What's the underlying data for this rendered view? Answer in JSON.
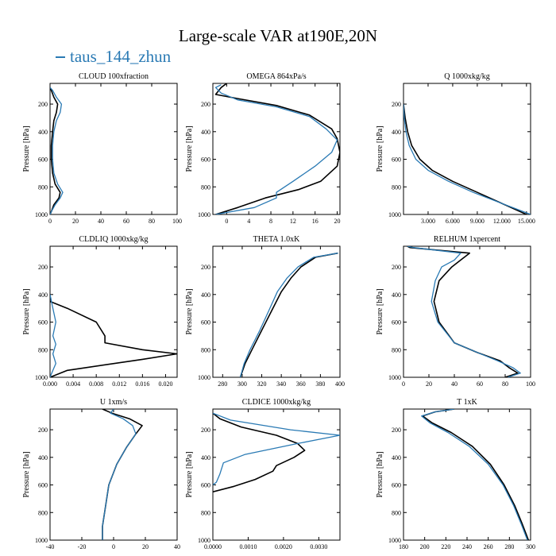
{
  "figure": {
    "title": "Large-scale VAR at190E,20N",
    "legend_label": "taus_144_zhun",
    "colors": {
      "model": "#000000",
      "obs": "#2a7ab4"
    }
  },
  "chart_data": [
    {
      "type": "line",
      "title": "CLOUD  100xfraction",
      "ylabel": "Pressure [hPa]",
      "xlim": [
        0,
        100
      ],
      "xticks": [
        0,
        20,
        40,
        60,
        80,
        100
      ],
      "ylim": [
        1000,
        50
      ],
      "yticks": [
        200,
        400,
        600,
        800,
        1000
      ],
      "series": [
        {
          "role": "model",
          "x": [
            0,
            1,
            3,
            6,
            5,
            3,
            2,
            1,
            1,
            2,
            4,
            8,
            7,
            3,
            1,
            0
          ],
          "y": [
            80,
            100,
            150,
            200,
            260,
            320,
            400,
            500,
            600,
            700,
            780,
            840,
            880,
            930,
            980,
            1000
          ]
        },
        {
          "role": "obs",
          "x": [
            0,
            2,
            5,
            9,
            8,
            5,
            3,
            2,
            2,
            3,
            6,
            10,
            8,
            4,
            1,
            0
          ],
          "y": [
            80,
            100,
            150,
            200,
            260,
            320,
            400,
            500,
            600,
            700,
            780,
            840,
            880,
            930,
            980,
            1000
          ]
        }
      ]
    },
    {
      "type": "line",
      "title": "OMEGA  864xPa/s",
      "ylabel": "Pressure [hPa]",
      "xlim": [
        -2.5,
        20.5
      ],
      "xticks": [
        0,
        4,
        8,
        12,
        16,
        20
      ],
      "ylim": [
        1000,
        50
      ],
      "yticks": [
        200,
        400,
        600,
        800,
        1000
      ],
      "series": [
        {
          "role": "model",
          "x": [
            0,
            -1,
            -2,
            2,
            9,
            15,
            19,
            20,
            20.5,
            20,
            17,
            13,
            7,
            2,
            -2
          ],
          "y": [
            50,
            80,
            130,
            160,
            210,
            280,
            380,
            450,
            550,
            650,
            760,
            820,
            880,
            950,
            1000
          ]
        },
        {
          "role": "obs",
          "x": [
            -1,
            -2,
            -1,
            2,
            9,
            15,
            18,
            20,
            19,
            16,
            12,
            9,
            9,
            5,
            -2
          ],
          "y": [
            60,
            80,
            120,
            170,
            220,
            290,
            380,
            460,
            550,
            650,
            760,
            840,
            880,
            950,
            1000
          ]
        }
      ]
    },
    {
      "type": "line",
      "title": "Q  1000xkg/kg",
      "ylabel": "Pressure [hPa]",
      "xlim": [
        0,
        15.5
      ],
      "xticks": [
        3,
        6,
        9,
        12,
        15
      ],
      "xtick_labels": [
        "3.000",
        "6.000",
        "9.000",
        "12.000",
        "15.000"
      ],
      "ylim": [
        1000,
        50
      ],
      "yticks": [
        200,
        400,
        600,
        800,
        1000
      ],
      "series": [
        {
          "role": "model",
          "x": [
            0,
            0.2,
            0.5,
            1,
            2,
            3.5,
            6,
            9,
            12,
            15
          ],
          "y": [
            200,
            300,
            400,
            500,
            600,
            680,
            760,
            840,
            920,
            1000
          ]
        },
        {
          "role": "obs",
          "x": [
            0,
            0.1,
            0.3,
            0.7,
            1.5,
            3,
            5.5,
            8.5,
            12,
            15.5
          ],
          "y": [
            200,
            300,
            400,
            500,
            600,
            680,
            760,
            840,
            920,
            1000
          ]
        }
      ]
    },
    {
      "type": "line",
      "title": "CLDLIQ  1000xkg/kg",
      "ylabel": "Pressure [hPa]",
      "xlim": [
        0,
        0.022
      ],
      "xticks": [
        0,
        0.004,
        0.008,
        0.012,
        0.016,
        0.02
      ],
      "xtick_labels": [
        "0.000",
        "0.004",
        "0.008",
        "0.012",
        "0.016",
        "0.020"
      ],
      "ylim": [
        1000,
        50
      ],
      "yticks": [
        200,
        400,
        600,
        800,
        1000
      ],
      "series": [
        {
          "role": "model",
          "x": [
            0,
            0,
            0.003,
            0.008,
            0.0095,
            0.0095,
            0.016,
            0.022,
            0.016,
            0.003,
            0
          ],
          "y": [
            400,
            450,
            500,
            600,
            700,
            750,
            800,
            830,
            870,
            950,
            1000
          ]
        },
        {
          "role": "obs",
          "x": [
            0,
            0.0005,
            0.001,
            0.0005,
            0.001,
            0.0005,
            0.001,
            0.0005,
            0
          ],
          "y": [
            400,
            500,
            600,
            700,
            760,
            830,
            900,
            950,
            1000
          ]
        }
      ]
    },
    {
      "type": "line",
      "title": "THETA  1.0xK",
      "ylabel": "Pressure [hPa]",
      "xlim": [
        270,
        400
      ],
      "xticks": [
        280,
        300,
        320,
        340,
        360,
        380,
        400
      ],
      "ylim": [
        1000,
        50
      ],
      "yticks": [
        200,
        400,
        600,
        800,
        1000
      ],
      "series": [
        {
          "role": "model",
          "x": [
            398,
            375,
            360,
            350,
            340,
            330,
            320,
            310,
            303,
            298
          ],
          "y": [
            100,
            130,
            200,
            280,
            380,
            520,
            660,
            800,
            900,
            1000
          ]
        },
        {
          "role": "obs",
          "x": [
            398,
            373,
            357,
            346,
            336,
            327,
            318,
            308,
            302,
            298
          ],
          "y": [
            100,
            130,
            200,
            280,
            380,
            520,
            660,
            800,
            900,
            1000
          ]
        }
      ]
    },
    {
      "type": "line",
      "title": "RELHUM  1xpercent",
      "ylabel": "Pressure [hPa]",
      "xlim": [
        0,
        100
      ],
      "xticks": [
        0,
        20,
        40,
        60,
        80,
        100
      ],
      "ylim": [
        1000,
        50
      ],
      "yticks": [
        200,
        400,
        600,
        800,
        1000
      ],
      "series": [
        {
          "role": "model",
          "x": [
            3,
            5,
            52,
            45,
            38,
            28,
            24,
            28,
            40,
            58,
            76,
            83,
            90,
            80
          ],
          "y": [
            50,
            60,
            100,
            150,
            200,
            300,
            450,
            600,
            750,
            820,
            880,
            930,
            970,
            1000
          ]
        },
        {
          "role": "obs",
          "x": [
            3,
            8,
            45,
            40,
            30,
            25,
            22,
            27,
            40,
            58,
            74,
            86,
            92,
            82
          ],
          "y": [
            50,
            60,
            100,
            150,
            200,
            300,
            450,
            600,
            750,
            820,
            880,
            930,
            970,
            1000
          ]
        }
      ]
    },
    {
      "type": "line",
      "title": "U  1xm/s",
      "ylabel": "Pressure [hPa]",
      "xlim": [
        -40,
        40
      ],
      "xticks": [
        -40,
        -20,
        0,
        20,
        40
      ],
      "ylim": [
        1000,
        50
      ],
      "yticks": [
        200,
        400,
        600,
        800,
        1000
      ],
      "series": [
        {
          "role": "model",
          "x": [
            -7,
            -1,
            10,
            18,
            14,
            8,
            2,
            -3,
            -5,
            -7,
            -7
          ],
          "y": [
            50,
            80,
            120,
            170,
            230,
            330,
            450,
            600,
            750,
            900,
            1000
          ]
        },
        {
          "role": "obs",
          "x": [
            0,
            -2,
            6,
            12,
            14,
            8,
            2,
            -3,
            -5,
            -7,
            -7
          ],
          "y": [
            50,
            80,
            120,
            170,
            230,
            330,
            450,
            600,
            750,
            900,
            1000
          ]
        }
      ]
    },
    {
      "type": "line",
      "title": "CLDICE  1000xkg/kg",
      "ylabel": "Pressure [hPa]",
      "xlim": [
        0,
        0.0036
      ],
      "xticks": [
        0,
        0.001,
        0.002,
        0.003
      ],
      "xtick_labels": [
        "0.0000",
        "0.0010",
        "0.0020",
        "0.0030"
      ],
      "ylim": [
        1000,
        50
      ],
      "yticks": [
        200,
        400,
        600,
        800,
        1000
      ],
      "series": [
        {
          "role": "model",
          "x": [
            0,
            0.0002,
            0.0008,
            0.0018,
            0.0024,
            0.0026,
            0.0023,
            0.0018,
            0.0017,
            0.0012,
            0.0006,
            0
          ],
          "y": [
            80,
            120,
            180,
            240,
            300,
            350,
            400,
            460,
            500,
            560,
            610,
            650
          ]
        },
        {
          "role": "obs",
          "x": [
            0,
            0.0005,
            0.0022,
            0.0036,
            0.0024,
            0.0009,
            0.0003,
            0.0002,
            0.0001,
            0
          ],
          "y": [
            80,
            130,
            200,
            240,
            300,
            380,
            440,
            520,
            580,
            600
          ]
        }
      ]
    },
    {
      "type": "line",
      "title": "T  1xK",
      "ylabel": "Pressure [hPa]",
      "xlim": [
        180,
        300
      ],
      "xticks": [
        180,
        200,
        220,
        240,
        260,
        280,
        300
      ],
      "ylim": [
        1000,
        50
      ],
      "yticks": [
        200,
        400,
        600,
        800,
        1000
      ],
      "series": [
        {
          "role": "model",
          "x": [
            228,
            210,
            198,
            207,
            225,
            245,
            262,
            275,
            285,
            292,
            298
          ],
          "y": [
            50,
            70,
            100,
            150,
            220,
            320,
            450,
            600,
            750,
            880,
            1000
          ]
        },
        {
          "role": "obs",
          "x": [
            228,
            210,
            197,
            205,
            222,
            242,
            260,
            274,
            284,
            291,
            297
          ],
          "y": [
            50,
            70,
            100,
            150,
            220,
            320,
            450,
            600,
            750,
            880,
            1000
          ]
        }
      ]
    }
  ]
}
